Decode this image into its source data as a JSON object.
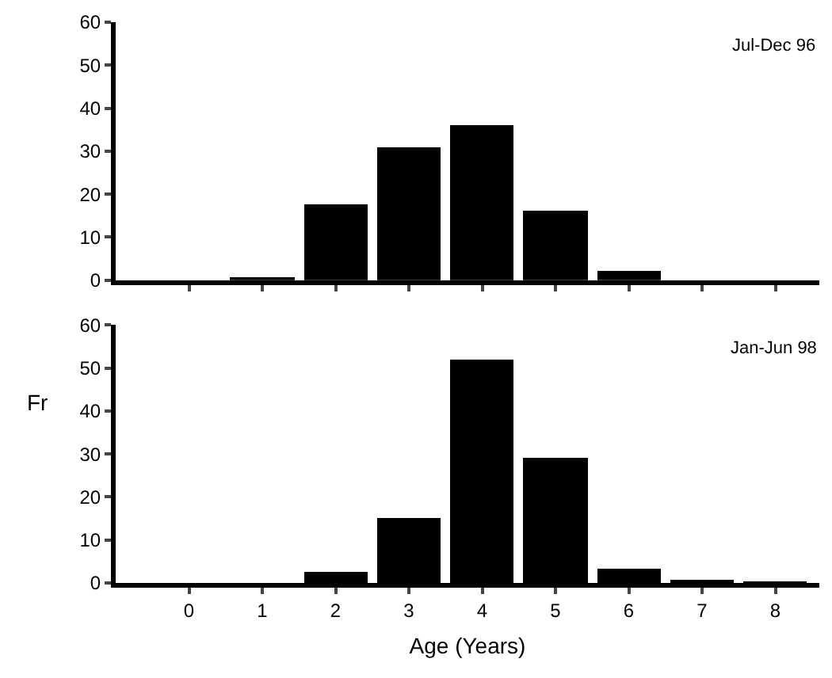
{
  "chart_data": [
    {
      "type": "bar",
      "title": "Jul-Dec 96",
      "x": [
        0,
        1,
        2,
        3,
        4,
        5,
        6,
        7,
        8
      ],
      "values": [
        0,
        0.5,
        17.6,
        30.8,
        36.2,
        16.1,
        2.2,
        0,
        0
      ],
      "color": "#000000",
      "xlim": [
        -1,
        8.6
      ],
      "xticks": [
        0,
        1,
        2,
        3,
        4,
        5,
        6,
        7,
        8
      ],
      "ylim": [
        0,
        60
      ],
      "yticks": [
        0,
        10,
        20,
        30,
        40,
        50,
        60
      ],
      "tick_labels": "y"
    },
    {
      "type": "bar",
      "title": "Jan-Jun 98",
      "x": [
        0,
        1,
        2,
        3,
        4,
        5,
        6,
        7,
        8
      ],
      "values": [
        0,
        0,
        2.7,
        15,
        52,
        29,
        3.3,
        0.4,
        0.2
      ],
      "color": "#000000",
      "xlim": [
        -1,
        8.6
      ],
      "xticks": [
        0,
        1,
        2,
        3,
        4,
        5,
        6,
        7,
        8
      ],
      "ylim": [
        0,
        60
      ],
      "yticks": [
        0,
        10,
        20,
        30,
        40,
        50,
        60
      ],
      "xlabel": "Age (Years)",
      "annotations": [
        "Fr"
      ]
    }
  ]
}
